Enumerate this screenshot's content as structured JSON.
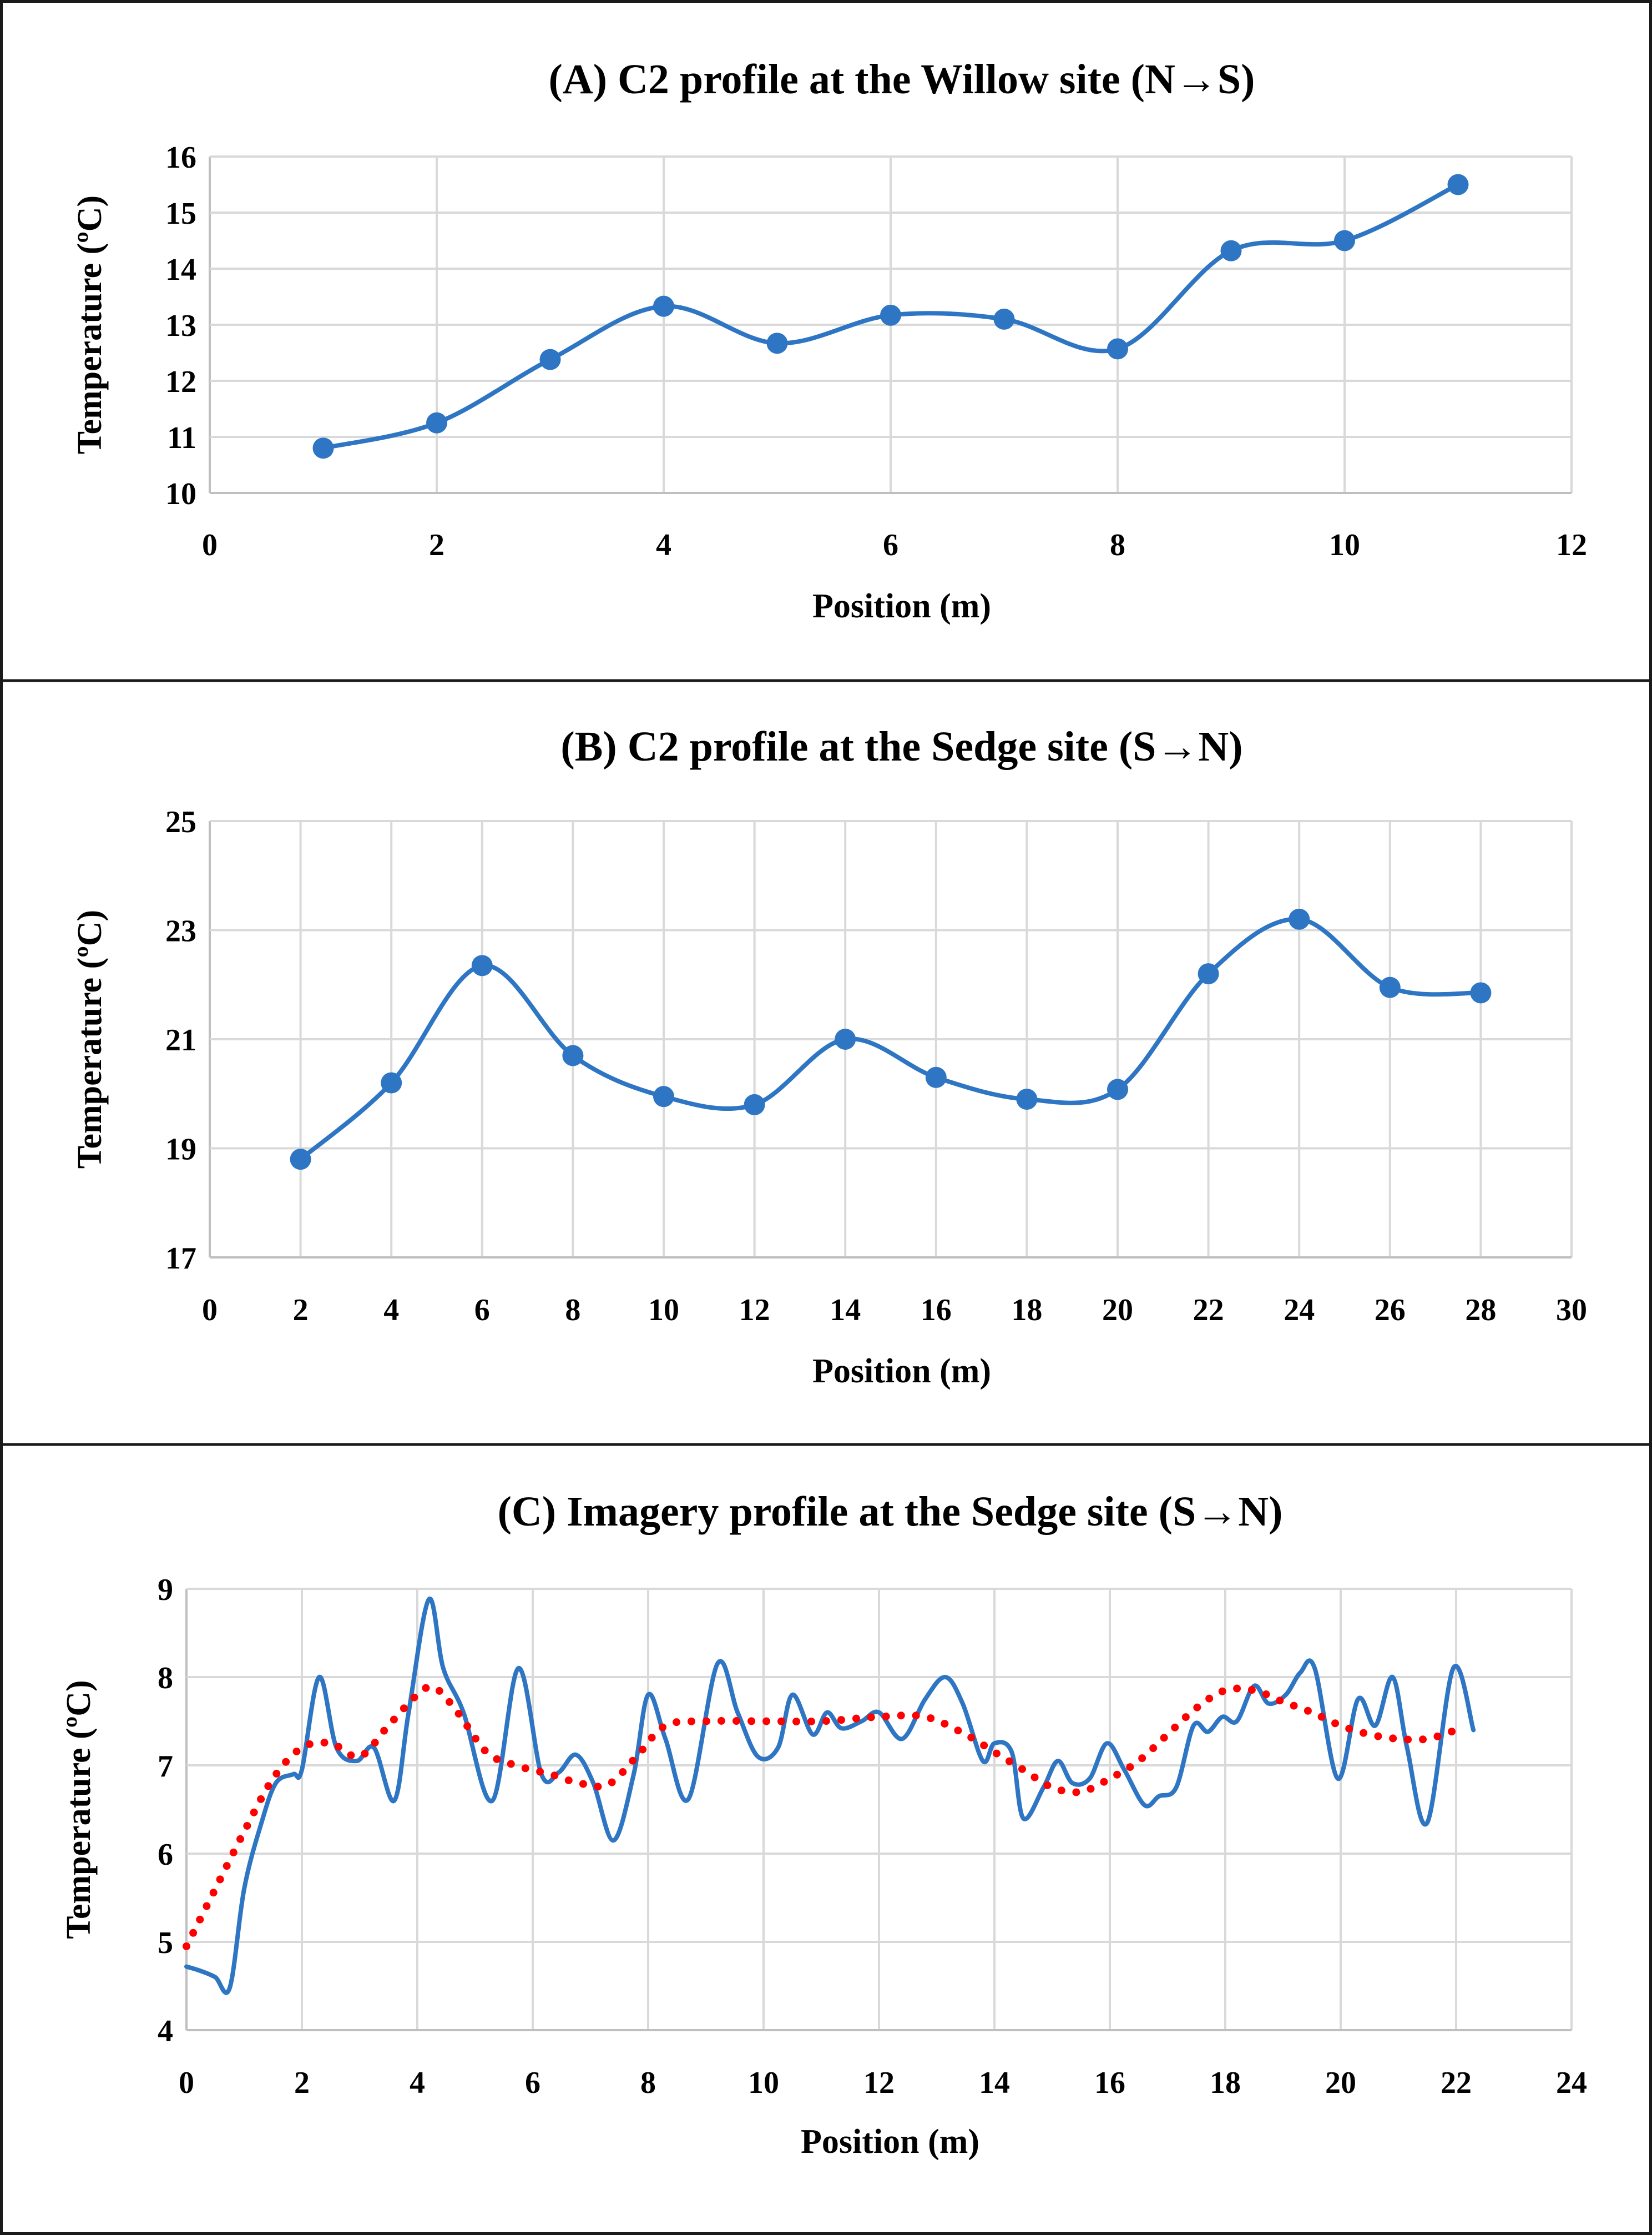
{
  "figure": {
    "colors": {
      "series_blue": "#2e75c3",
      "trend_red": "#ff0000",
      "grid": "#d9d9d9",
      "text": "#000000"
    }
  },
  "chart_data": [
    {
      "type": "line",
      "title": "(A) C2 profile at the Willow site (N→S)",
      "xlabel": "Position (m)",
      "ylabel": "Temperature (ºC)",
      "xlim": [
        0,
        12
      ],
      "ylim": [
        10,
        16
      ],
      "xticks": [
        "0",
        "2",
        "4",
        "6",
        "8",
        "10",
        "12"
      ],
      "yticks": [
        "10",
        "11",
        "12",
        "13",
        "14",
        "15",
        "16"
      ],
      "grid": true,
      "series": [
        {
          "name": "C2",
          "style": "smooth-markers",
          "color": "#2e75c3",
          "x": [
            1,
            2,
            3,
            4,
            5,
            6,
            7,
            8,
            9,
            10,
            11
          ],
          "y": [
            10.8,
            11.25,
            12.38,
            13.33,
            12.67,
            13.17,
            13.1,
            12.57,
            14.32,
            14.5,
            15.5
          ]
        }
      ]
    },
    {
      "type": "line",
      "title": "(B) C2 profile at the Sedge site (S→N)",
      "xlabel": "Position (m)",
      "ylabel": "Temperature (ºC)",
      "xlim": [
        0,
        30
      ],
      "ylim": [
        17,
        25
      ],
      "xticks": [
        "0",
        "2",
        "4",
        "6",
        "8",
        "10",
        "12",
        "14",
        "16",
        "18",
        "20",
        "22",
        "24",
        "26",
        "28",
        "30"
      ],
      "yticks": [
        "17",
        "19",
        "21",
        "23",
        "25"
      ],
      "grid": true,
      "series": [
        {
          "name": "C2",
          "style": "smooth-markers",
          "color": "#2e75c3",
          "x": [
            2,
            4,
            6,
            8,
            10,
            12,
            14,
            16,
            18,
            20,
            22,
            24,
            26,
            28
          ],
          "y": [
            18.8,
            20.2,
            22.35,
            20.7,
            19.95,
            19.8,
            21.0,
            20.3,
            19.9,
            20.08,
            22.2,
            23.2,
            21.95,
            21.85
          ]
        }
      ]
    },
    {
      "type": "line",
      "title": "(C) Imagery profile at the Sedge site (S→N)",
      "xlabel": "Position (m)",
      "ylabel": "Temperature (ºC)",
      "xlim": [
        0,
        24
      ],
      "ylim": [
        4,
        9
      ],
      "xticks": [
        "0",
        "2",
        "4",
        "6",
        "8",
        "10",
        "12",
        "14",
        "16",
        "18",
        "20",
        "22",
        "24"
      ],
      "yticks": [
        "4",
        "5",
        "6",
        "7",
        "8",
        "9"
      ],
      "grid": true,
      "series": [
        {
          "name": "Imagery",
          "style": "smooth-line",
          "color": "#2e75c3",
          "x": [
            0,
            0.25,
            0.5,
            0.75,
            1.0,
            1.3,
            1.55,
            1.85,
            2.0,
            2.3,
            2.6,
            2.95,
            3.25,
            3.6,
            3.85,
            4.2,
            4.45,
            4.8,
            5.3,
            5.75,
            6.15,
            6.45,
            6.75,
            7.05,
            7.4,
            7.75,
            8.0,
            8.3,
            8.7,
            9.2,
            9.55,
            9.9,
            10.25,
            10.5,
            10.85,
            11.1,
            11.35,
            11.7,
            12.0,
            12.4,
            12.8,
            13.15,
            13.45,
            13.8,
            14.0,
            14.3,
            14.5,
            14.85,
            15.1,
            15.35,
            15.65,
            15.95,
            16.25,
            16.6,
            16.85,
            17.15,
            17.45,
            17.7,
            17.95,
            18.2,
            18.5,
            18.75,
            19.05,
            19.3,
            19.55,
            19.95,
            20.3,
            20.6,
            20.9,
            21.15,
            21.5,
            21.95,
            22.3
          ],
          "y": [
            4.72,
            4.67,
            4.6,
            4.48,
            5.6,
            6.35,
            6.8,
            6.9,
            6.95,
            8.0,
            7.2,
            7.05,
            7.2,
            6.6,
            7.6,
            8.88,
            8.1,
            7.6,
            6.6,
            8.1,
            6.9,
            6.92,
            7.12,
            6.8,
            6.15,
            6.9,
            7.8,
            7.3,
            6.62,
            8.15,
            7.6,
            7.1,
            7.2,
            7.8,
            7.35,
            7.6,
            7.42,
            7.5,
            7.6,
            7.3,
            7.75,
            8.0,
            7.7,
            7.05,
            7.25,
            7.15,
            6.4,
            6.75,
            7.05,
            6.8,
            6.85,
            7.25,
            6.95,
            6.55,
            6.65,
            6.75,
            7.45,
            7.38,
            7.55,
            7.5,
            7.9,
            7.7,
            7.8,
            8.05,
            8.1,
            6.85,
            7.75,
            7.45,
            8.0,
            7.2,
            6.35,
            8.1,
            7.4
          ]
        },
        {
          "name": "Trend",
          "style": "dotted",
          "color": "#ff0000",
          "x": [
            0,
            0.5,
            1.0,
            1.5,
            2.0,
            2.5,
            3.0,
            3.5,
            4.0,
            4.3,
            4.7,
            5.2,
            5.7,
            6.3,
            6.8,
            7.3,
            7.8,
            8.3,
            9.0,
            10.0,
            11.0,
            12.0,
            12.8,
            13.5,
            14.0,
            14.5,
            15.0,
            15.5,
            16.0,
            16.5,
            17.0,
            17.5,
            18.0,
            18.5,
            19.0,
            19.5,
            20.0,
            20.5,
            21.0,
            21.5,
            22.0
          ],
          "y": [
            4.95,
            5.6,
            6.25,
            6.85,
            7.2,
            7.25,
            7.1,
            7.45,
            7.8,
            7.88,
            7.6,
            7.15,
            7.0,
            6.9,
            6.8,
            6.78,
            7.1,
            7.45,
            7.5,
            7.5,
            7.5,
            7.55,
            7.55,
            7.35,
            7.15,
            6.95,
            6.75,
            6.7,
            6.85,
            7.05,
            7.35,
            7.65,
            7.85,
            7.85,
            7.72,
            7.6,
            7.45,
            7.35,
            7.3,
            7.3,
            7.4
          ]
        }
      ]
    }
  ]
}
